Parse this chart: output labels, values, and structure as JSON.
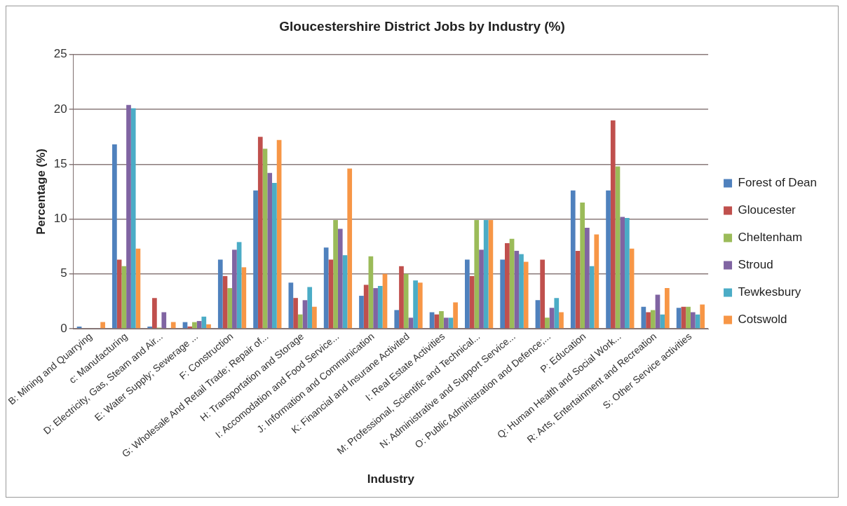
{
  "chart_data": {
    "type": "bar",
    "title": "Gloucestershire District Jobs by Industry (%)",
    "xlabel": "Industry",
    "ylabel": "Percentage (%)",
    "categories": [
      "B: Mining and Quarrying",
      "c: Manufacturing",
      "D: Electricity, Gas, Steam and Air...",
      "E: Water Supply; Sewerage ...",
      "F: Construction",
      "G: Wholesale And Retail Trade; Repair of...",
      "H: Transportation and Storage",
      "I: Accomodation and Food Service...",
      "J: Information and Communication",
      "K: Financial and Insurane Activited",
      "I: Real Estate Activities",
      "M: Professional, Scientific and Technical...",
      "N: Administrative and Support Service...",
      "O: Public Administration and Defence;...",
      "P: Education",
      "Q: Human Health and Social Work...",
      "R: Arts, Entertainment and Recreation",
      "S: Other Service activities"
    ],
    "series": [
      {
        "name": "Forest of Dean",
        "color": "#4f81bd",
        "values": [
          0.2,
          16.8,
          0.2,
          0.6,
          6.3,
          12.6,
          4.2,
          7.4,
          3.0,
          1.7,
          1.5,
          6.3,
          6.3,
          2.6,
          12.6,
          12.6,
          2.0,
          1.9
        ]
      },
      {
        "name": "Gloucester",
        "color": "#c0504d",
        "values": [
          0,
          6.3,
          2.8,
          0.2,
          4.8,
          17.5,
          2.8,
          6.3,
          4.0,
          5.7,
          1.3,
          4.8,
          7.8,
          6.3,
          7.1,
          19.0,
          1.5,
          2.0
        ]
      },
      {
        "name": "Cheltenham",
        "color": "#9bbb59",
        "values": [
          0,
          5.7,
          0.1,
          0.6,
          3.7,
          16.4,
          1.3,
          9.9,
          6.6,
          5.0,
          1.6,
          9.9,
          8.2,
          1.0,
          11.5,
          14.8,
          1.7,
          2.0
        ]
      },
      {
        "name": "Stroud",
        "color": "#8064a2",
        "values": [
          0,
          20.4,
          1.5,
          0.7,
          7.2,
          14.2,
          2.6,
          9.1,
          3.7,
          1.0,
          1.0,
          7.2,
          7.1,
          1.9,
          9.2,
          10.2,
          3.1,
          1.5
        ]
      },
      {
        "name": "Tewkesbury",
        "color": "#4bacc6",
        "values": [
          0,
          20.1,
          0,
          1.1,
          7.9,
          13.3,
          3.8,
          6.7,
          3.9,
          4.4,
          1.0,
          9.9,
          6.8,
          2.8,
          5.7,
          10.1,
          1.3,
          1.3
        ]
      },
      {
        "name": "Cotswold",
        "color": "#f79646",
        "values": [
          0.6,
          7.3,
          0.6,
          0.4,
          5.6,
          17.2,
          2.0,
          14.6,
          5.0,
          4.2,
          2.4,
          9.9,
          6.1,
          1.5,
          8.6,
          7.3,
          3.7,
          2.2
        ]
      }
    ],
    "ylim": [
      0,
      25
    ],
    "yticks": [
      0,
      5,
      10,
      15,
      20,
      25
    ],
    "grid": "y",
    "legend": "right"
  }
}
